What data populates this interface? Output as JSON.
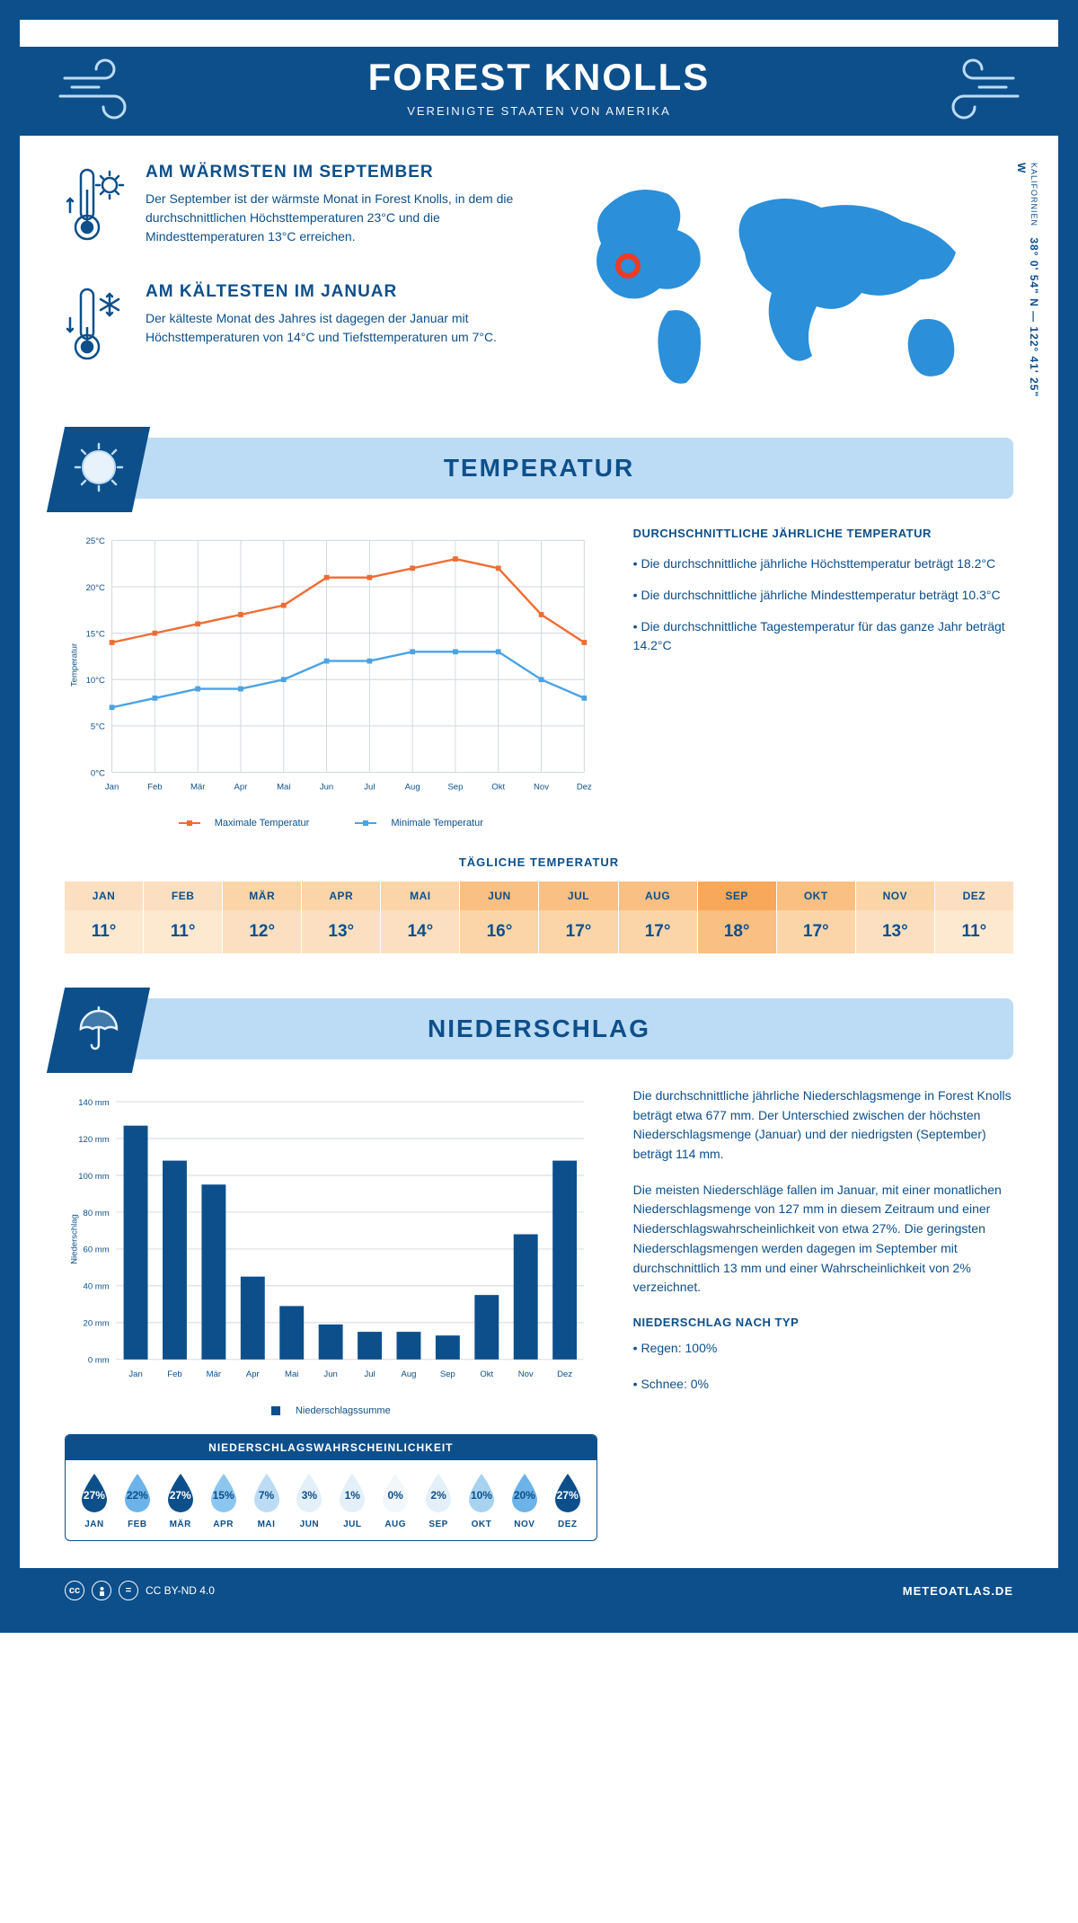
{
  "header": {
    "title": "FOREST KNOLLS",
    "subtitle": "VEREINIGTE STAATEN VON AMERIKA"
  },
  "coords": {
    "region": "KALIFORNIEN",
    "text": "38° 0' 54\" N — 122° 41' 25\" W"
  },
  "warm": {
    "title": "AM WÄRMSTEN IM SEPTEMBER",
    "body": "Der September ist der wärmste Monat in Forest Knolls, in dem die durchschnittlichen Höchsttemperaturen 23°C und die Mindesttemperaturen 13°C erreichen."
  },
  "cold": {
    "title": "AM KÄLTESTEN IM JANUAR",
    "body": "Der kälteste Monat des Jahres ist dagegen der Januar mit Höchsttemperaturen von 14°C und Tiefsttemperaturen um 7°C."
  },
  "temperature": {
    "banner": "TEMPERATUR",
    "avg_title": "DURCHSCHNITTLICHE JÄHRLICHE TEMPERATUR",
    "bullets": [
      "• Die durchschnittliche jährliche Höchsttemperatur beträgt 18.2°C",
      "• Die durchschnittliche jährliche Mindesttemperatur beträgt 10.3°C",
      "• Die durchschnittliche Tagestemperatur für das ganze Jahr beträgt 14.2°C"
    ],
    "chart": {
      "ylabel": "Temperatur",
      "ylim": [
        0,
        25
      ],
      "ytick_step": 5,
      "yticks": [
        "0°C",
        "5°C",
        "10°C",
        "15°C",
        "20°C",
        "25°C"
      ],
      "months": [
        "Jan",
        "Feb",
        "Mär",
        "Apr",
        "Mai",
        "Jun",
        "Jul",
        "Aug",
        "Sep",
        "Okt",
        "Nov",
        "Dez"
      ],
      "max": {
        "label": "Maximale Temperatur",
        "color": "#ef6c33",
        "values": [
          14,
          15,
          16,
          17,
          18,
          21,
          21,
          22,
          23,
          22,
          17,
          14
        ]
      },
      "min": {
        "label": "Minimale Temperatur",
        "color": "#4ba3e3",
        "values": [
          7,
          8,
          9,
          9,
          10,
          12,
          12,
          13,
          13,
          13,
          10,
          8
        ]
      },
      "grid_color": "#d0d7de"
    },
    "daily": {
      "title": "TÄGLICHE TEMPERATUR",
      "months": [
        "JAN",
        "FEB",
        "MÄR",
        "APR",
        "MAI",
        "JUN",
        "JUL",
        "AUG",
        "SEP",
        "OKT",
        "NOV",
        "DEZ"
      ],
      "values": [
        "11°",
        "11°",
        "12°",
        "13°",
        "14°",
        "16°",
        "17°",
        "17°",
        "18°",
        "17°",
        "13°",
        "11°"
      ],
      "head_colors": [
        "#fcdfc0",
        "#fcdfc0",
        "#fbd5a8",
        "#fbd5a8",
        "#fbd5a8",
        "#f9bf83",
        "#f9bf83",
        "#f9bf83",
        "#f7a85a",
        "#f9bf83",
        "#fbd5a8",
        "#fcdfc0"
      ],
      "body_colors": [
        "#fde8d0",
        "#fde8d0",
        "#fcdfc0",
        "#fcdfc0",
        "#fcdfc0",
        "#fbd5a8",
        "#fbd5a8",
        "#fbd5a8",
        "#f9bf83",
        "#fbd5a8",
        "#fcdfc0",
        "#fde8d0"
      ]
    }
  },
  "precip": {
    "banner": "NIEDERSCHLAG",
    "text1": "Die durchschnittliche jährliche Niederschlagsmenge in Forest Knolls beträgt etwa 677 mm. Der Unterschied zwischen der höchsten Niederschlagsmenge (Januar) und der niedrigsten (September) beträgt 114 mm.",
    "text2": "Die meisten Niederschläge fallen im Januar, mit einer monatlichen Niederschlagsmenge von 127 mm in diesem Zeitraum und einer Niederschlagswahrscheinlichkeit von etwa 27%. Die geringsten Niederschlagsmengen werden dagegen im September mit durchschnittlich 13 mm und einer Wahrscheinlichkeit von 2% verzeichnet.",
    "type_title": "NIEDERSCHLAG NACH TYP",
    "type_bullets": [
      "• Regen: 100%",
      "• Schnee: 0%"
    ],
    "chart": {
      "ylabel": "Niederschlag",
      "ylim": [
        0,
        140
      ],
      "ytick_step": 20,
      "yticks": [
        "0 mm",
        "20 mm",
        "40 mm",
        "60 mm",
        "80 mm",
        "100 mm",
        "120 mm",
        "140 mm"
      ],
      "months": [
        "Jan",
        "Feb",
        "Mär",
        "Apr",
        "Mai",
        "Jun",
        "Jul",
        "Aug",
        "Sep",
        "Okt",
        "Nov",
        "Dez"
      ],
      "values": [
        127,
        108,
        95,
        45,
        29,
        19,
        15,
        15,
        13,
        35,
        68,
        108
      ],
      "bar_color": "#0d4f8b",
      "grid_color": "#d0d7de",
      "legend": "Niederschlagssumme"
    },
    "prob": {
      "title": "NIEDERSCHLAGSWAHRSCHEINLICHKEIT",
      "months": [
        "JAN",
        "FEB",
        "MÄR",
        "APR",
        "MAI",
        "JUN",
        "JUL",
        "AUG",
        "SEP",
        "OKT",
        "NOV",
        "DEZ"
      ],
      "values": [
        "27%",
        "22%",
        "27%",
        "15%",
        "7%",
        "3%",
        "1%",
        "0%",
        "2%",
        "10%",
        "20%",
        "27%"
      ],
      "colors": [
        "#0d4f8b",
        "#6bb3e8",
        "#0d4f8b",
        "#8cc6ee",
        "#bcdcf5",
        "#e3eff9",
        "#e3eff9",
        "#f2f7fb",
        "#e3eff9",
        "#a8d3f0",
        "#6bb3e8",
        "#0d4f8b"
      ],
      "text_colors": [
        "#fff",
        "#0d4f8b",
        "#fff",
        "#0d4f8b",
        "#0d4f8b",
        "#0d4f8b",
        "#0d4f8b",
        "#0d4f8b",
        "#0d4f8b",
        "#0d4f8b",
        "#0d4f8b",
        "#fff"
      ]
    }
  },
  "footer": {
    "license": "CC BY-ND 4.0",
    "brand": "METEOATLAS.DE"
  }
}
